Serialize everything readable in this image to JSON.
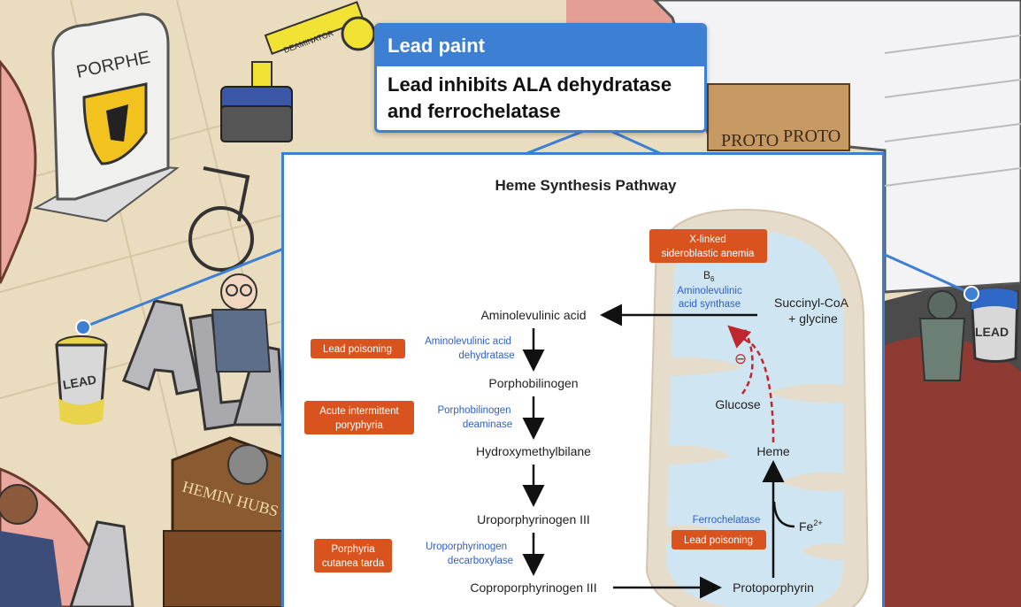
{
  "callout": {
    "header": "Lead paint",
    "body_line1": "Lead inhibits ALA dehydratase",
    "body_line2": "and ferrochelatase"
  },
  "scene": {
    "porphe_sign": "PORPHE",
    "deaminator_label": "DEAMINATOR",
    "ala_letters": "ALA",
    "lead_can_left": "LEAD",
    "lead_can_right": "LEAD",
    "hemin_box": "HEMIN HUBS",
    "proto_box_1": "PROTO",
    "proto_box_2": "PROTO"
  },
  "diagram": {
    "title": "Heme Synthesis Pathway",
    "steps": {
      "ala": "Aminolevulinic acid",
      "pbg": "Porphobilinogen",
      "hmb": "Hydroxymethylbilane",
      "uro": "Uroporphyrinogen III",
      "copro": "Coproporphyrinogen III",
      "proto": "Protoporphyrin",
      "heme": "Heme",
      "succ1": "Succinyl-CoA",
      "succ2": "+ glycine",
      "glucose": "Glucose",
      "fe": "Fe",
      "fe_sup": "2+"
    },
    "enzymes": {
      "b6": "B",
      "b6_sub": "6",
      "alas1": "Aminolevulinic",
      "alas2": "acid synthase",
      "alad1": "Aminolevulinic acid",
      "alad2": "dehydratase",
      "pbgd1": "Porphobilinogen",
      "pbgd2": "deaminase",
      "urod1": "Uroporphyrinogen",
      "urod2": "decarboxylase",
      "ferro": "Ferrochelatase"
    },
    "diseases": {
      "xlsa1": "X-linked",
      "xlsa2": "sideroblastic anemia",
      "lead1": "Lead poisoning",
      "aip1": "Acute intermittent",
      "aip2": "poryphyria",
      "pct1": "Porphyria",
      "pct2": "cutanea tarda",
      "lead2": "Lead poisoning"
    },
    "inhibit_symbol": "⊖",
    "colors": {
      "accent": "#3d7fd3",
      "disease": "#d9531e",
      "enzyme": "#2f5fc8",
      "mito_outer": "#e6dccb",
      "mito_inner": "#cfe5f2",
      "feedback": "#c0262d"
    }
  }
}
